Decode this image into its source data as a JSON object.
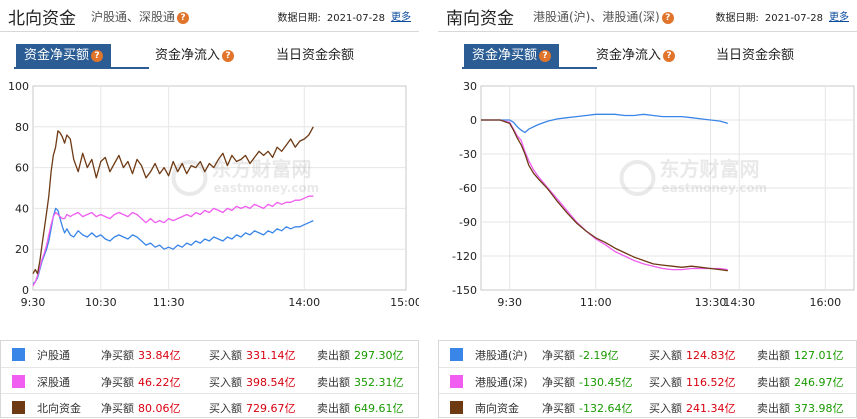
{
  "left": {
    "title": "北向资金",
    "subtitle": "沪股通、深股通",
    "date_label": "数据日期:",
    "date": "2021-07-28",
    "more": "更多",
    "tabs": [
      "资金净买额",
      "资金净流入",
      "当日资金余额"
    ],
    "legend": [
      {
        "name": "沪股通",
        "net_label": "净买额",
        "net": "33.84亿",
        "buy_label": "买入额",
        "buy": "331.14亿",
        "sell_label": "卖出额",
        "sell": "297.30亿",
        "color": "#3a85e8"
      },
      {
        "name": "深股通",
        "net_label": "净买额",
        "net": "46.22亿",
        "buy_label": "买入额",
        "buy": "398.54亿",
        "sell_label": "卖出额",
        "sell": "352.31亿",
        "color": "#f05df0"
      },
      {
        "name": "北向资金",
        "net_label": "净买额",
        "net": "80.06亿",
        "buy_label": "买入额",
        "buy": "729.67亿",
        "sell_label": "卖出额",
        "sell": "649.61亿",
        "color": "#6e3a14"
      }
    ]
  },
  "right": {
    "title": "南向资金",
    "subtitle": "港股通(沪)、港股通(深)",
    "date_label": "数据日期:",
    "date": "2021-07-28",
    "more": "更多",
    "tabs": [
      "资金净买额",
      "资金净流入",
      "当日资金余额"
    ],
    "legend": [
      {
        "name": "港股通(沪)",
        "net_label": "净买额",
        "net": "-2.19亿",
        "buy_label": "买入额",
        "buy": "124.83亿",
        "sell_label": "卖出额",
        "sell": "127.01亿",
        "color": "#3a85e8"
      },
      {
        "name": "港股通(深)",
        "net_label": "净买额",
        "net": "-130.45亿",
        "buy_label": "买入额",
        "buy": "116.52亿",
        "sell_label": "卖出额",
        "sell": "246.97亿",
        "color": "#f05df0"
      },
      {
        "name": "南向资金",
        "net_label": "净买额",
        "net": "-132.64亿",
        "buy_label": "买入额",
        "buy": "241.34亿",
        "sell_label": "卖出额",
        "sell": "373.98亿",
        "color": "#6e3a14"
      }
    ]
  },
  "watermark": {
    "cn": "东方财富网",
    "en": "eastmoney.com"
  },
  "chart_data": [
    {
      "type": "line",
      "ylim": [
        0,
        100
      ],
      "yticks": [
        "100",
        "80",
        "60",
        "40",
        "20",
        "0"
      ],
      "xlim": [
        0,
        330
      ],
      "xticks": [
        {
          "t": 0,
          "label": "9:30"
        },
        {
          "t": 60,
          "label": "10:30"
        },
        {
          "t": 120,
          "label": "11:30"
        },
        {
          "t": 240,
          "label": "14:00"
        },
        {
          "t": 330,
          "label": "15:00"
        }
      ],
      "series": [
        {
          "name": "沪股通",
          "color": "#3a85e8",
          "x": [
            0,
            2,
            4,
            6,
            8,
            10,
            12,
            14,
            16,
            18,
            20,
            22,
            24,
            26,
            28,
            30,
            33,
            36,
            40,
            44,
            48,
            52,
            56,
            60,
            64,
            68,
            72,
            76,
            80,
            84,
            88,
            92,
            96,
            100,
            104,
            108,
            112,
            116,
            120,
            124,
            128,
            132,
            136,
            140,
            144,
            148,
            152,
            156,
            160,
            164,
            168,
            172,
            176,
            180,
            184,
            188,
            192,
            196,
            200,
            204,
            208,
            212,
            216,
            220,
            224,
            228,
            232,
            236,
            240,
            244,
            248
          ],
          "values": [
            3,
            4,
            6,
            10,
            14,
            17,
            20,
            24,
            30,
            36,
            40,
            39,
            35,
            31,
            28,
            30,
            27,
            26,
            29,
            27,
            26,
            28,
            26,
            27,
            25,
            24,
            26,
            27,
            26,
            25,
            27,
            26,
            24,
            22,
            23,
            21,
            22,
            20,
            21,
            20,
            22,
            21,
            23,
            22,
            24,
            23,
            25,
            24,
            26,
            25,
            24,
            26,
            25,
            27,
            26,
            28,
            27,
            29,
            28,
            27,
            29,
            28,
            30,
            29,
            31,
            30,
            31,
            31,
            32,
            33,
            34
          ]
        },
        {
          "name": "深股通",
          "color": "#f05df0",
          "x": [
            0,
            2,
            4,
            6,
            8,
            10,
            12,
            14,
            16,
            18,
            20,
            22,
            24,
            26,
            28,
            30,
            33,
            36,
            40,
            44,
            48,
            52,
            56,
            60,
            64,
            68,
            72,
            76,
            80,
            84,
            88,
            92,
            96,
            100,
            104,
            108,
            112,
            116,
            120,
            124,
            128,
            132,
            136,
            140,
            144,
            148,
            152,
            156,
            160,
            164,
            168,
            172,
            176,
            180,
            184,
            188,
            192,
            196,
            200,
            204,
            208,
            212,
            216,
            220,
            224,
            228,
            232,
            236,
            240,
            244,
            248
          ],
          "values": [
            2,
            4,
            7,
            11,
            15,
            18,
            22,
            27,
            32,
            36,
            38,
            37,
            36,
            35,
            35,
            37,
            36,
            37,
            38,
            36,
            37,
            38,
            36,
            37,
            36,
            35,
            37,
            38,
            37,
            36,
            38,
            37,
            35,
            33,
            35,
            33,
            34,
            33,
            35,
            34,
            35,
            36,
            37,
            36,
            38,
            37,
            39,
            38,
            40,
            39,
            38,
            40,
            39,
            41,
            40,
            41,
            40,
            42,
            41,
            40,
            42,
            41,
            43,
            42,
            43,
            43,
            44,
            44,
            45,
            46,
            46
          ]
        },
        {
          "name": "北向资金",
          "color": "#6e3a14",
          "x": [
            0,
            2,
            4,
            6,
            8,
            10,
            12,
            14,
            16,
            18,
            20,
            22,
            24,
            26,
            28,
            30,
            33,
            36,
            40,
            44,
            48,
            52,
            56,
            60,
            64,
            68,
            72,
            76,
            80,
            84,
            88,
            92,
            96,
            100,
            104,
            108,
            112,
            116,
            120,
            124,
            128,
            132,
            136,
            140,
            144,
            148,
            152,
            156,
            160,
            164,
            168,
            172,
            176,
            180,
            184,
            188,
            192,
            196,
            200,
            204,
            208,
            212,
            216,
            220,
            224,
            228,
            232,
            236,
            240,
            244,
            248
          ],
          "values": [
            8,
            10,
            8,
            14,
            22,
            30,
            38,
            46,
            58,
            66,
            70,
            78,
            77,
            75,
            72,
            76,
            74,
            64,
            58,
            67,
            60,
            64,
            55,
            63,
            65,
            58,
            62,
            66,
            60,
            63,
            57,
            64,
            61,
            55,
            58,
            62,
            57,
            60,
            56,
            63,
            58,
            62,
            57,
            61,
            60,
            63,
            58,
            62,
            60,
            64,
            67,
            61,
            66,
            63,
            64,
            66,
            62,
            65,
            68,
            66,
            68,
            65,
            70,
            68,
            71,
            74,
            70,
            73,
            74,
            76,
            80
          ]
        }
      ]
    },
    {
      "type": "line",
      "ylim": [
        -150,
        30
      ],
      "yticks": [
        "30",
        "0",
        "-30",
        "-60",
        "-90",
        "-120",
        "-150"
      ],
      "xlim": [
        0,
        390
      ],
      "xticks": [
        {
          "t": 30,
          "label": "9:30"
        },
        {
          "t": 120,
          "label": "11:00"
        },
        {
          "t": 240,
          "label": "13:30"
        },
        {
          "t": 270,
          "label": "14:30"
        },
        {
          "t": 360,
          "label": "16:00"
        }
      ],
      "series": [
        {
          "name": "港股通(沪)",
          "color": "#3a85e8",
          "x": [
            0,
            10,
            20,
            30,
            34,
            38,
            42,
            46,
            50,
            60,
            70,
            80,
            90,
            100,
            110,
            120,
            130,
            140,
            150,
            160,
            170,
            180,
            190,
            200,
            210,
            220,
            230,
            240,
            250,
            258
          ],
          "values": [
            0,
            0,
            0,
            0,
            -2,
            -6,
            -9,
            -11,
            -8,
            -4,
            -1,
            1,
            2,
            3,
            4,
            5,
            5,
            5,
            4,
            4,
            5,
            4,
            3,
            3,
            3,
            2,
            1,
            0,
            -1,
            -3
          ]
        },
        {
          "name": "港股通(深)",
          "color": "#f05df0",
          "x": [
            0,
            10,
            20,
            30,
            34,
            38,
            42,
            46,
            50,
            55,
            60,
            70,
            80,
            90,
            100,
            110,
            120,
            130,
            140,
            150,
            160,
            170,
            180,
            190,
            200,
            210,
            220,
            230,
            240,
            250,
            258
          ],
          "values": [
            0,
            0,
            0,
            -2,
            -8,
            -14,
            -18,
            -28,
            -36,
            -44,
            -50,
            -60,
            -70,
            -80,
            -90,
            -98,
            -105,
            -110,
            -116,
            -120,
            -124,
            -127,
            -129,
            -131,
            -132,
            -132,
            -131,
            -131,
            -131,
            -131,
            -132
          ]
        },
        {
          "name": "南向资金",
          "color": "#6e3a14",
          "x": [
            0,
            10,
            20,
            30,
            34,
            38,
            42,
            46,
            50,
            55,
            60,
            70,
            80,
            90,
            100,
            110,
            120,
            130,
            140,
            150,
            160,
            170,
            180,
            190,
            200,
            210,
            220,
            230,
            240,
            250,
            258
          ],
          "values": [
            0,
            0,
            0,
            -3,
            -9,
            -16,
            -22,
            -30,
            -40,
            -47,
            -52,
            -61,
            -72,
            -82,
            -91,
            -98,
            -104,
            -108,
            -113,
            -117,
            -121,
            -124,
            -127,
            -128,
            -129,
            -130,
            -129,
            -130,
            -131,
            -132,
            -133
          ]
        }
      ]
    }
  ]
}
